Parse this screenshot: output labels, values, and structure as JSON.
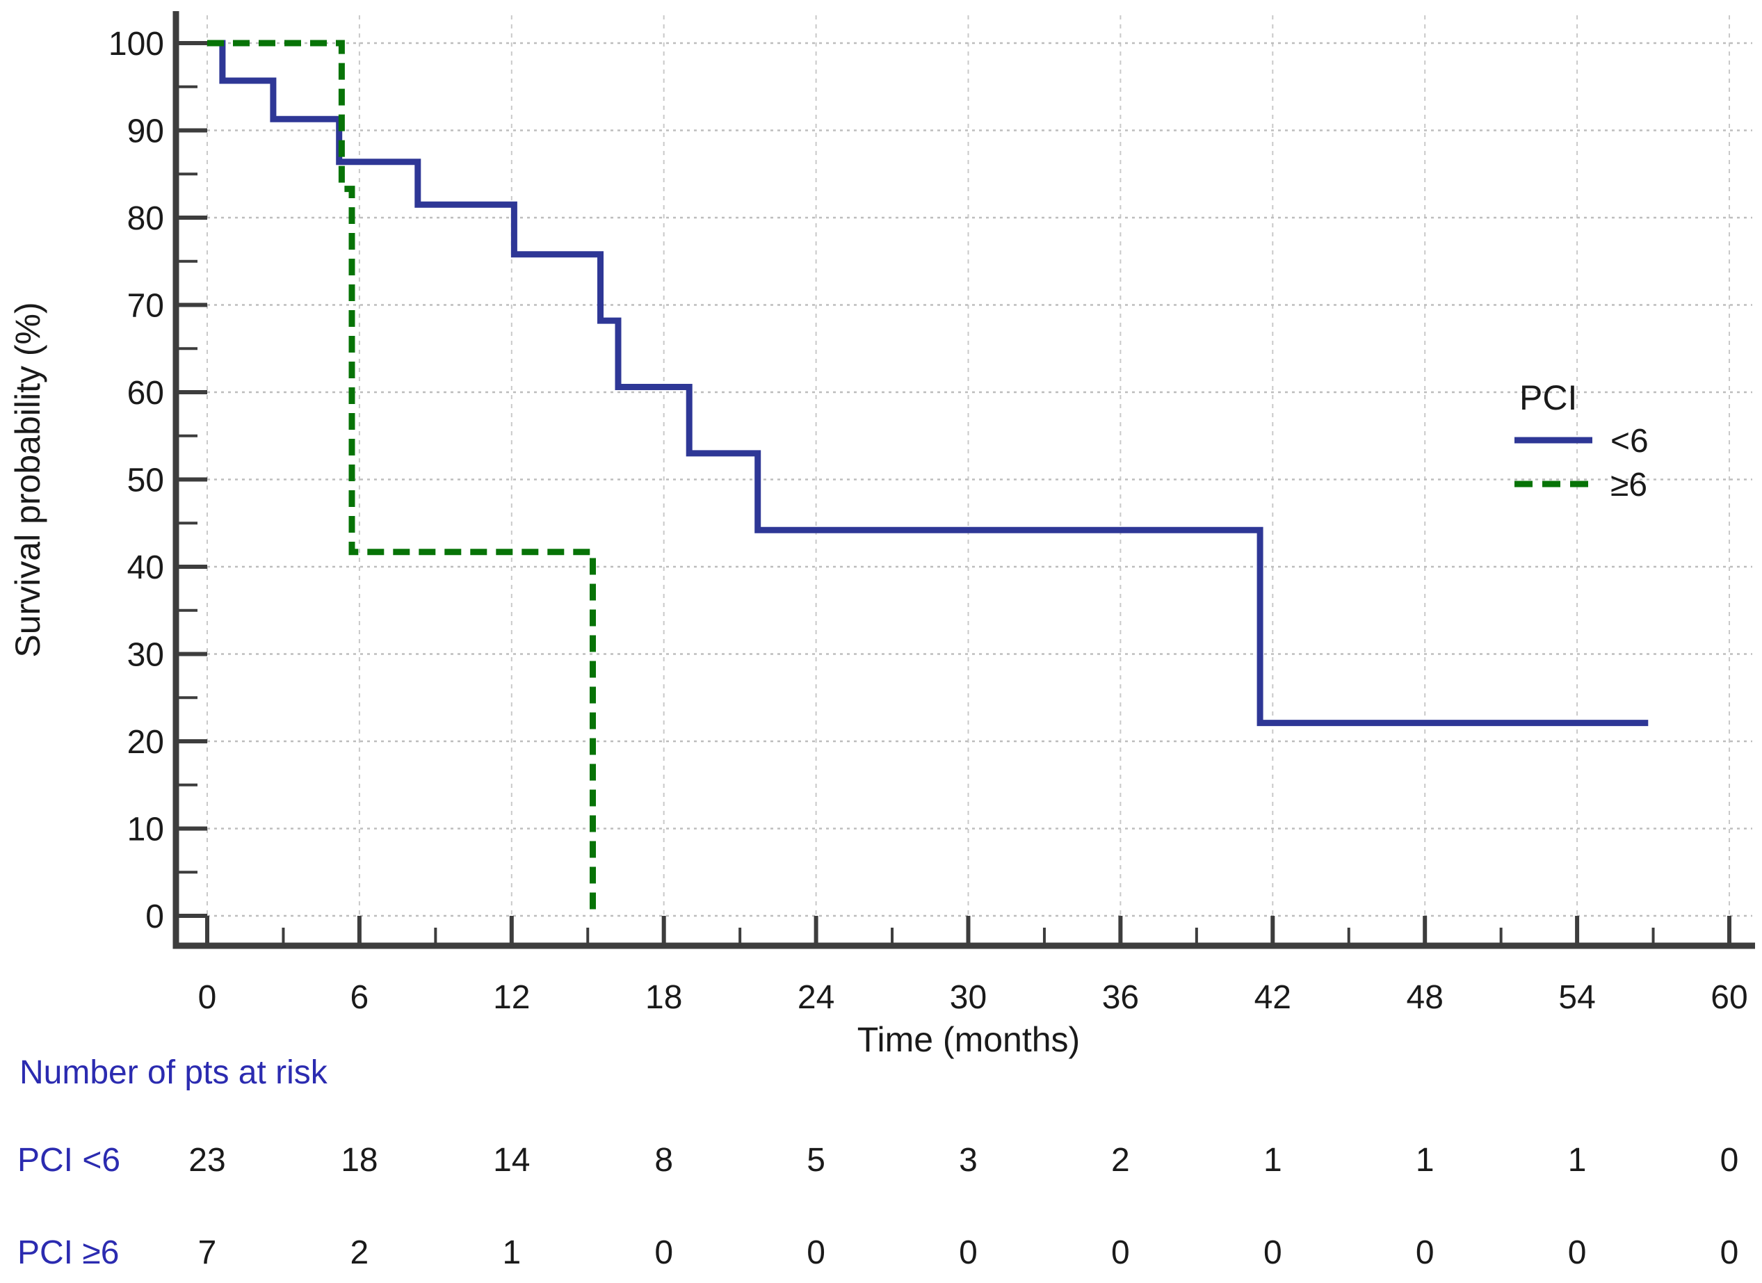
{
  "accent_colors": {
    "curve_lt6": "#2e3796",
    "curve_ge6": "#077307",
    "risk_text": "#2b2bb0",
    "tick_text": "#1a1a1a",
    "axis_line": "#3d3d3d",
    "grid_line": "#bdbdbd"
  },
  "chart_data": {
    "type": "line",
    "subtype": "kaplan-meier-step",
    "title": "",
    "xlabel": "Time (months)",
    "ylabel": "Survival probability (%)",
    "xlim": [
      0,
      60
    ],
    "ylim": [
      0,
      100
    ],
    "x_major_ticks": [
      0,
      6,
      12,
      18,
      24,
      30,
      36,
      42,
      48,
      54,
      60
    ],
    "x_minor_ticks": [
      3,
      9,
      15,
      21,
      27,
      33,
      39,
      45,
      51,
      57
    ],
    "y_major_ticks": [
      0,
      10,
      20,
      30,
      40,
      50,
      60,
      70,
      80,
      90,
      100
    ],
    "y_minor_ticks": [
      5,
      15,
      25,
      35,
      45,
      55,
      65,
      75,
      85,
      95
    ],
    "grid": "dashed major gridlines, both axes",
    "legend_position": "right-middle",
    "series": [
      {
        "name": "PCI <6",
        "color": "#2e3796",
        "line": "solid",
        "step_points": [
          [
            0,
            100
          ],
          [
            0.6,
            100
          ],
          [
            0.6,
            95.7
          ],
          [
            2.6,
            95.7
          ],
          [
            2.6,
            91.3
          ],
          [
            5.2,
            91.3
          ],
          [
            5.2,
            86.4
          ],
          [
            8.3,
            86.4
          ],
          [
            8.3,
            81.5
          ],
          [
            12.1,
            81.5
          ],
          [
            12.1,
            75.8
          ],
          [
            15.5,
            75.8
          ],
          [
            15.5,
            68.2
          ],
          [
            16.2,
            68.2
          ],
          [
            16.2,
            60.6
          ],
          [
            19,
            60.6
          ],
          [
            19,
            53
          ],
          [
            21.7,
            53
          ],
          [
            21.7,
            44.2
          ],
          [
            41.5,
            44.2
          ],
          [
            41.5,
            22.1
          ],
          [
            56.8,
            22.1
          ]
        ]
      },
      {
        "name": "PCI ≥6",
        "color": "#077307",
        "line": "dashed",
        "step_points": [
          [
            0,
            100
          ],
          [
            5.3,
            100
          ],
          [
            5.3,
            83.3
          ],
          [
            5.7,
            83.3
          ],
          [
            5.7,
            41.7
          ],
          [
            15.2,
            41.7
          ],
          [
            15.2,
            0
          ]
        ]
      }
    ]
  },
  "legend": {
    "title": "PCI",
    "items": [
      {
        "label": "<6",
        "style": "solid",
        "color": "#2e3796"
      },
      {
        "label": "≥6",
        "style": "dashed",
        "color": "#077307"
      }
    ]
  },
  "risk_table": {
    "header": "Number of pts at risk",
    "times": [
      0,
      6,
      12,
      18,
      24,
      30,
      36,
      42,
      48,
      54,
      60
    ],
    "rows": [
      {
        "label": "PCI <6",
        "values": [
          23,
          18,
          14,
          8,
          5,
          3,
          2,
          1,
          1,
          1,
          0
        ]
      },
      {
        "label": "PCI ≥6",
        "values": [
          7,
          2,
          1,
          0,
          0,
          0,
          0,
          0,
          0,
          0,
          0
        ]
      }
    ]
  }
}
